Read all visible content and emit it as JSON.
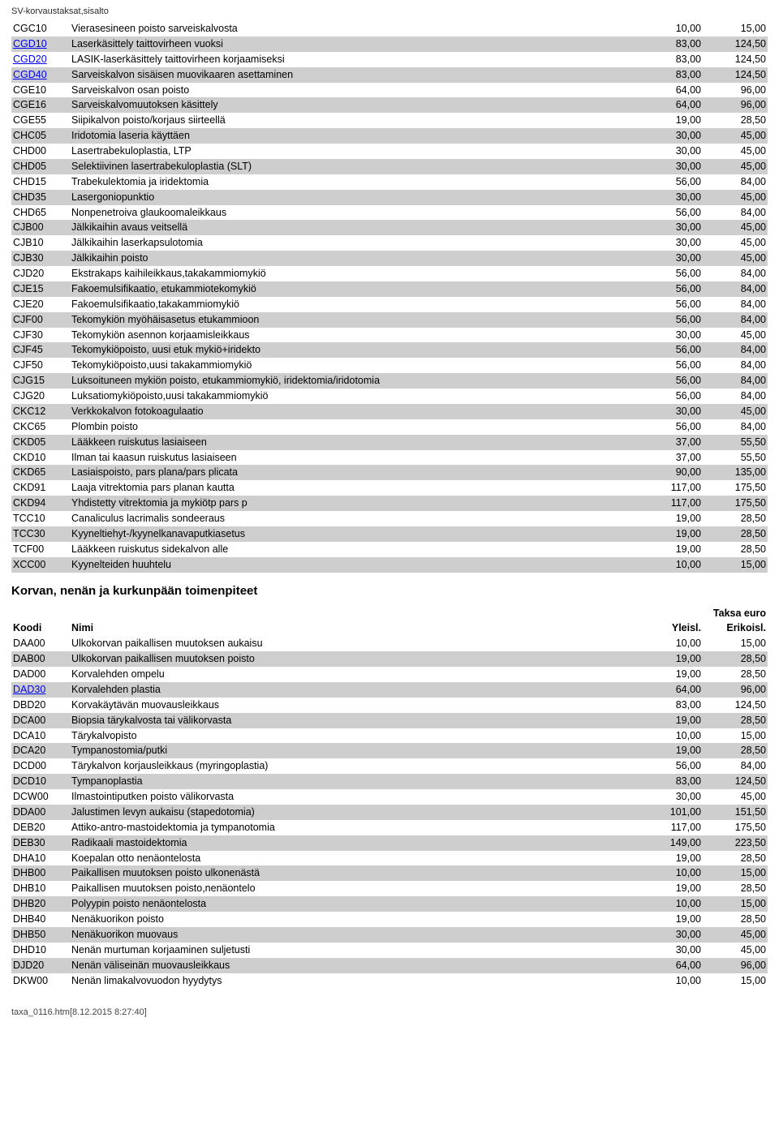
{
  "pageHeader": "SV-korvaustaksat,sisalto",
  "rows1": [
    {
      "code": "CGC10",
      "name": "Vierasesineen poisto sarveiskalvosta",
      "v1": "10,00",
      "v2": "15,00",
      "shaded": false,
      "link": false
    },
    {
      "code": "CGD10",
      "name": "Laserkäsittely taittovirheen vuoksi",
      "v1": "83,00",
      "v2": "124,50",
      "shaded": true,
      "link": true
    },
    {
      "code": "CGD20",
      "name": "LASIK-laserkäsittely taittovirheen korjaamiseksi",
      "v1": "83,00",
      "v2": "124,50",
      "shaded": false,
      "link": true
    },
    {
      "code": "CGD40",
      "name": "Sarveiskalvon sisäisen muovikaaren asettaminen",
      "v1": "83,00",
      "v2": "124,50",
      "shaded": true,
      "link": true
    },
    {
      "code": "CGE10",
      "name": "Sarveiskalvon osan poisto",
      "v1": "64,00",
      "v2": "96,00",
      "shaded": false,
      "link": false
    },
    {
      "code": "CGE16",
      "name": "Sarveiskalvomuutoksen käsittely",
      "v1": "64,00",
      "v2": "96,00",
      "shaded": true,
      "link": false
    },
    {
      "code": "CGE55",
      "name": "Siipikalvon poisto/korjaus siirteellä",
      "v1": "19,00",
      "v2": "28,50",
      "shaded": false,
      "link": false
    },
    {
      "code": "CHC05",
      "name": "Iridotomia laseria käyttäen",
      "v1": "30,00",
      "v2": "45,00",
      "shaded": true,
      "link": false
    },
    {
      "code": "CHD00",
      "name": "Lasertrabekuloplastia, LTP",
      "v1": "30,00",
      "v2": "45,00",
      "shaded": false,
      "link": false
    },
    {
      "code": "CHD05",
      "name": "Selektiivinen lasertrabekuloplastia (SLT)",
      "v1": "30,00",
      "v2": "45,00",
      "shaded": true,
      "link": false
    },
    {
      "code": "CHD15",
      "name": "Trabekulektomia ja iridektomia",
      "v1": "56,00",
      "v2": "84,00",
      "shaded": false,
      "link": false
    },
    {
      "code": "CHD35",
      "name": "Lasergoniopunktio",
      "v1": "30,00",
      "v2": "45,00",
      "shaded": true,
      "link": false
    },
    {
      "code": "CHD65",
      "name": "Nonpenetroiva glaukoomaleikkaus",
      "v1": "56,00",
      "v2": "84,00",
      "shaded": false,
      "link": false
    },
    {
      "code": "CJB00",
      "name": "Jälkikaihin avaus veitsellä",
      "v1": "30,00",
      "v2": "45,00",
      "shaded": true,
      "link": false
    },
    {
      "code": "CJB10",
      "name": "Jälkikaihin laserkapsulotomia",
      "v1": "30,00",
      "v2": "45,00",
      "shaded": false,
      "link": false
    },
    {
      "code": "CJB30",
      "name": "Jälkikaihin poisto",
      "v1": "30,00",
      "v2": "45,00",
      "shaded": true,
      "link": false
    },
    {
      "code": "CJD20",
      "name": "Ekstrakaps kaihileikkaus,takakammiomykiö",
      "v1": "56,00",
      "v2": "84,00",
      "shaded": false,
      "link": false
    },
    {
      "code": "CJE15",
      "name": "Fakoemulsifikaatio, etukammiotekomykiö",
      "v1": "56,00",
      "v2": "84,00",
      "shaded": true,
      "link": false
    },
    {
      "code": "CJE20",
      "name": "Fakoemulsifikaatio,takakammiomykiö",
      "v1": "56,00",
      "v2": "84,00",
      "shaded": false,
      "link": false
    },
    {
      "code": "CJF00",
      "name": "Tekomykiön myöhäisasetus etukammioon",
      "v1": "56,00",
      "v2": "84,00",
      "shaded": true,
      "link": false
    },
    {
      "code": "CJF30",
      "name": "Tekomykiön asennon korjaamisleikkaus",
      "v1": "30,00",
      "v2": "45,00",
      "shaded": false,
      "link": false
    },
    {
      "code": "CJF45",
      "name": "Tekomykiöpoisto, uusi etuk mykiö+iridekto",
      "v1": "56,00",
      "v2": "84,00",
      "shaded": true,
      "link": false
    },
    {
      "code": "CJF50",
      "name": "Tekomykiöpoisto,uusi takakammiomykiö",
      "v1": "56,00",
      "v2": "84,00",
      "shaded": false,
      "link": false
    },
    {
      "code": "CJG15",
      "name": "Luksoituneen mykiön poisto, etukammiomykiö, iridektomia/iridotomia",
      "v1": "56,00",
      "v2": "84,00",
      "shaded": true,
      "link": false
    },
    {
      "code": "CJG20",
      "name": "Luksatiomykiöpoisto,uusi takakammiomykiö",
      "v1": "56,00",
      "v2": "84,00",
      "shaded": false,
      "link": false
    },
    {
      "code": "CKC12",
      "name": "Verkkokalvon fotokoagulaatio",
      "v1": "30,00",
      "v2": "45,00",
      "shaded": true,
      "link": false
    },
    {
      "code": "CKC65",
      "name": "Plombin poisto",
      "v1": "56,00",
      "v2": "84,00",
      "shaded": false,
      "link": false
    },
    {
      "code": "CKD05",
      "name": "Lääkkeen ruiskutus lasiaiseen",
      "v1": "37,00",
      "v2": "55,50",
      "shaded": true,
      "link": false
    },
    {
      "code": "CKD10",
      "name": "Ilman tai kaasun ruiskutus lasiaiseen",
      "v1": "37,00",
      "v2": "55,50",
      "shaded": false,
      "link": false
    },
    {
      "code": "CKD65",
      "name": "Lasiaispoisto, pars plana/pars plicata",
      "v1": "90,00",
      "v2": "135,00",
      "shaded": true,
      "link": false
    },
    {
      "code": "CKD91",
      "name": "Laaja vitrektomia pars planan kautta",
      "v1": "117,00",
      "v2": "175,50",
      "shaded": false,
      "link": false
    },
    {
      "code": "CKD94",
      "name": "Yhdistetty vitrektomia ja mykiötp pars p",
      "v1": "117,00",
      "v2": "175,50",
      "shaded": true,
      "link": false
    },
    {
      "code": "TCC10",
      "name": "Canaliculus lacrimalis sondeeraus",
      "v1": "19,00",
      "v2": "28,50",
      "shaded": false,
      "link": false
    },
    {
      "code": "TCC30",
      "name": "Kyyneltiehyt-/kyynelkanavaputkiasetus",
      "v1": "19,00",
      "v2": "28,50",
      "shaded": true,
      "link": false
    },
    {
      "code": "TCF00",
      "name": "Lääkkeen ruiskutus sidekalvon alle",
      "v1": "19,00",
      "v2": "28,50",
      "shaded": false,
      "link": false
    },
    {
      "code": "XCC00",
      "name": "Kyynelteiden huuhtelu",
      "v1": "10,00",
      "v2": "15,00",
      "shaded": true,
      "link": false
    }
  ],
  "sectionTitle": "Korvan, nenän ja kurkunpään toimenpiteet",
  "header2": {
    "koodi": "Koodi",
    "nimi": "Nimi",
    "yleis": "Yleisl.",
    "erik": "Erikoisl.",
    "taksa": "Taksa euro"
  },
  "rows2": [
    {
      "code": "DAA00",
      "name": "Ulkokorvan paikallisen muutoksen aukaisu",
      "v1": "10,00",
      "v2": "15,00",
      "shaded": false,
      "link": false
    },
    {
      "code": "DAB00",
      "name": "Ulkokorvan paikallisen muutoksen poisto",
      "v1": "19,00",
      "v2": "28,50",
      "shaded": true,
      "link": false
    },
    {
      "code": "DAD00",
      "name": "Korvalehden ompelu",
      "v1": "19,00",
      "v2": "28,50",
      "shaded": false,
      "link": false
    },
    {
      "code": "DAD30",
      "name": "Korvalehden plastia",
      "v1": "64,00",
      "v2": "96,00",
      "shaded": true,
      "link": true
    },
    {
      "code": "DBD20",
      "name": "Korvakäytävän muovausleikkaus",
      "v1": "83,00",
      "v2": "124,50",
      "shaded": false,
      "link": false
    },
    {
      "code": "DCA00",
      "name": "Biopsia tärykalvosta tai välikorvasta",
      "v1": "19,00",
      "v2": "28,50",
      "shaded": true,
      "link": false
    },
    {
      "code": "DCA10",
      "name": "Tärykalvopisto",
      "v1": "10,00",
      "v2": "15,00",
      "shaded": false,
      "link": false
    },
    {
      "code": "DCA20",
      "name": "Tympanostomia/putki",
      "v1": "19,00",
      "v2": "28,50",
      "shaded": true,
      "link": false
    },
    {
      "code": "DCD00",
      "name": "Tärykalvon korjausleikkaus (myringoplastia)",
      "v1": "56,00",
      "v2": "84,00",
      "shaded": false,
      "link": false
    },
    {
      "code": "DCD10",
      "name": "Tympanoplastia",
      "v1": "83,00",
      "v2": "124,50",
      "shaded": true,
      "link": false
    },
    {
      "code": "DCW00",
      "name": "Ilmastointiputken poisto välikorvasta",
      "v1": "30,00",
      "v2": "45,00",
      "shaded": false,
      "link": false
    },
    {
      "code": "DDA00",
      "name": "Jalustimen levyn aukaisu (stapedotomia)",
      "v1": "101,00",
      "v2": "151,50",
      "shaded": true,
      "link": false
    },
    {
      "code": "DEB20",
      "name": "Attiko-antro-mastoidektomia ja tympanotomia",
      "v1": "117,00",
      "v2": "175,50",
      "shaded": false,
      "link": false
    },
    {
      "code": "DEB30",
      "name": "Radikaali mastoidektomia",
      "v1": "149,00",
      "v2": "223,50",
      "shaded": true,
      "link": false
    },
    {
      "code": "DHA10",
      "name": "Koepalan otto nenäontelosta",
      "v1": "19,00",
      "v2": "28,50",
      "shaded": false,
      "link": false
    },
    {
      "code": "DHB00",
      "name": "Paikallisen muutoksen poisto ulkonenästä",
      "v1": "10,00",
      "v2": "15,00",
      "shaded": true,
      "link": false
    },
    {
      "code": "DHB10",
      "name": "Paikallisen muutoksen poisto,nenäontelo",
      "v1": "19,00",
      "v2": "28,50",
      "shaded": false,
      "link": false
    },
    {
      "code": "DHB20",
      "name": "Polyypin poisto nenäontelosta",
      "v1": "10,00",
      "v2": "15,00",
      "shaded": true,
      "link": false
    },
    {
      "code": "DHB40",
      "name": "Nenäkuorikon poisto",
      "v1": "19,00",
      "v2": "28,50",
      "shaded": false,
      "link": false
    },
    {
      "code": "DHB50",
      "name": "Nenäkuorikon muovaus",
      "v1": "30,00",
      "v2": "45,00",
      "shaded": true,
      "link": false
    },
    {
      "code": "DHD10",
      "name": "Nenän murtuman korjaaminen suljetusti",
      "v1": "30,00",
      "v2": "45,00",
      "shaded": false,
      "link": false
    },
    {
      "code": "DJD20",
      "name": "Nenän väliseinän muovausleikkaus",
      "v1": "64,00",
      "v2": "96,00",
      "shaded": true,
      "link": false
    },
    {
      "code": "DKW00",
      "name": "Nenän limakalvovuodon hyydytys",
      "v1": "10,00",
      "v2": "15,00",
      "shaded": false,
      "link": false
    }
  ],
  "footer": "taxa_0116.htm[8.12.2015 8:27:40]"
}
